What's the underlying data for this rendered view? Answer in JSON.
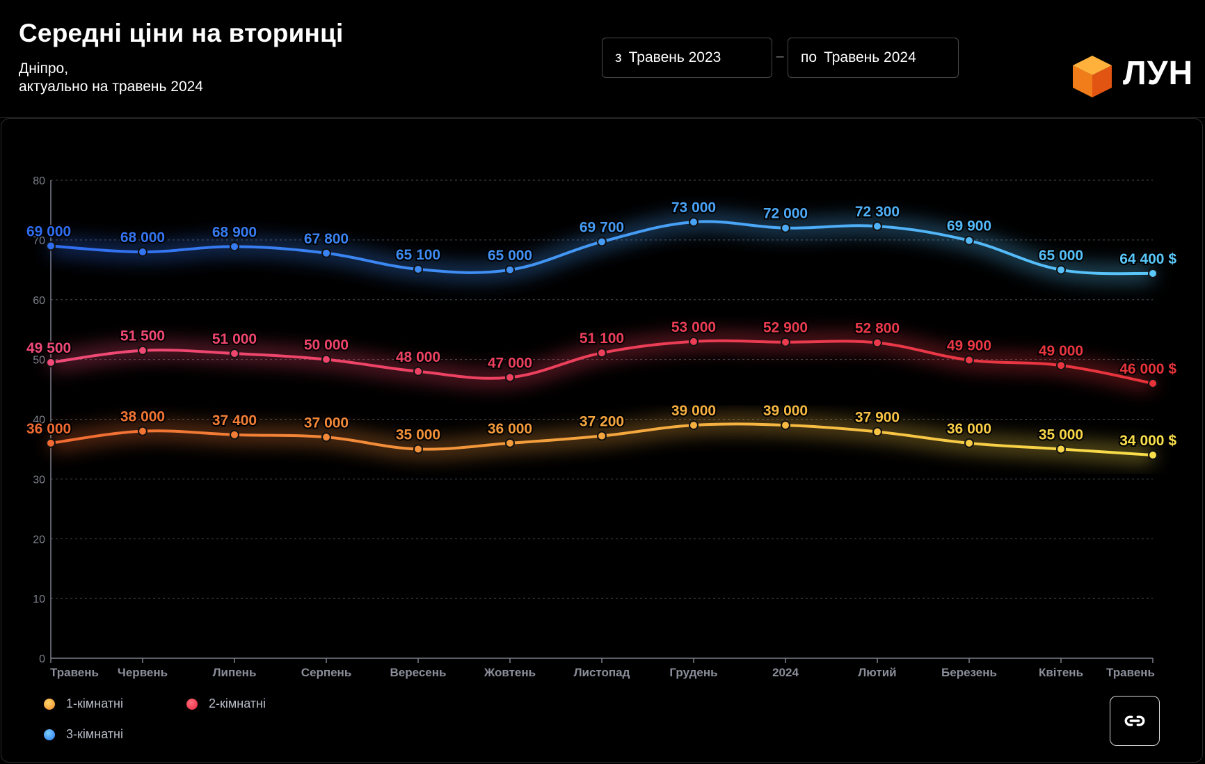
{
  "header": {
    "title": "Середні ціни на вторинці",
    "subtitle_line1": "Дніпро,",
    "subtitle_line2": "актуально на травень 2024"
  },
  "range": {
    "from_prefix": "з",
    "from_value": "Травень 2023",
    "separator": "–",
    "to_prefix": "по",
    "to_value": "Травень 2024"
  },
  "logo": {
    "text": "ЛУН",
    "icon": "orange-cube-logo"
  },
  "legend": {
    "items": [
      {
        "label": "1-кімнатні",
        "color": "#f2a43a"
      },
      {
        "label": "2-кімнатні",
        "color": "#ee3b55"
      },
      {
        "label": "3-кімнатні",
        "color": "#3d8ef5"
      }
    ]
  },
  "actions": {
    "share_icon": "link-icon"
  },
  "chart_data": {
    "type": "line",
    "categories": [
      "Травень",
      "Червень",
      "Липень",
      "Серпень",
      "Вересень",
      "Жовтень",
      "Листопад",
      "Грудень",
      "2024",
      "Лютий",
      "Березень",
      "Квітень",
      "Травень"
    ],
    "ylim": [
      0,
      80
    ],
    "yticks": [
      0,
      10,
      20,
      30,
      40,
      50,
      60,
      70,
      80
    ],
    "grid": true,
    "legend_position": "bottom-left",
    "last_label_suffix": " $",
    "series": [
      {
        "name": "3-кімнатні",
        "color_start": "#2f6cf0",
        "color_end": "#5ac8fa",
        "values": [
          69000,
          68000,
          68900,
          67800,
          65100,
          65000,
          69700,
          73000,
          72000,
          72300,
          69900,
          65000,
          64400
        ],
        "labels": [
          "69 000",
          "68 000",
          "68 900",
          "67 800",
          "65 100",
          "65 000",
          "69 700",
          "73 000",
          "72 000",
          "72 300",
          "69 900",
          "65 000",
          "64 400"
        ]
      },
      {
        "name": "2-кімнатні",
        "color_start": "#f04a78",
        "color_end": "#e8333b",
        "values": [
          49500,
          51500,
          51000,
          50000,
          48000,
          47000,
          51100,
          53000,
          52900,
          52800,
          49900,
          49000,
          46000
        ],
        "labels": [
          "49 500",
          "51 500",
          "51 000",
          "50 000",
          "48 000",
          "47 000",
          "51 100",
          "53 000",
          "52 900",
          "52 800",
          "49 900",
          "49 000",
          "46 000"
        ]
      },
      {
        "name": "1-кімнатні",
        "color_start": "#f06a32",
        "color_end": "#f9e04a",
        "values": [
          36000,
          38000,
          37400,
          37000,
          35000,
          36000,
          37200,
          39000,
          39000,
          37900,
          36000,
          35000,
          34000
        ],
        "labels": [
          "36 000",
          "38 000",
          "37 400",
          "37 000",
          "35 000",
          "36 000",
          "37 200",
          "39 000",
          "39 000",
          "37 900",
          "36 000",
          "35 000",
          "34 000"
        ]
      }
    ]
  }
}
